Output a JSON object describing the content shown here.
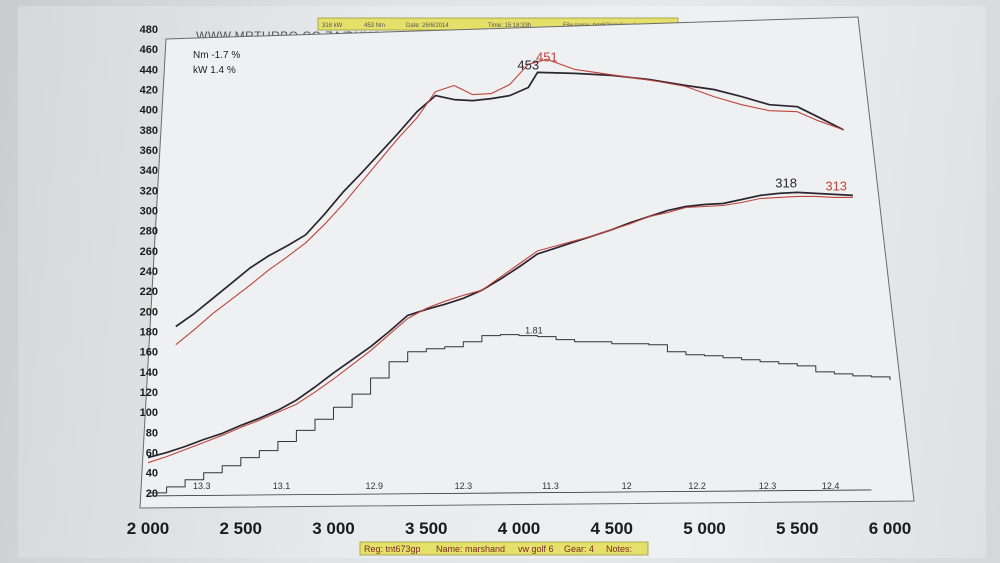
{
  "header": {
    "url": "WWW.MRTURBO.CO.ZA/DYNO",
    "fields": [
      "318 kW",
      "453 Nm",
      "Date: 26/6/2014",
      "Time: 15:18:33h",
      "File name: bmt6?#gp/lisa.dyn"
    ]
  },
  "footer": {
    "fields": [
      "Reg: tnt673gp",
      "Name: marshand",
      "vw golf 6",
      "Gear: 4",
      "Notes:"
    ]
  },
  "stats": {
    "nm_diff": "Nm -1.7 %",
    "kw_diff": "kW 1.4 %"
  },
  "colors": {
    "run_a": "#2b2530",
    "run_b": "#c0443c",
    "boost": "#333333"
  },
  "chart_data": {
    "type": "line",
    "xlim": [
      2000,
      6000
    ],
    "ylim": [
      10,
      485
    ],
    "x_ticks": [
      2000,
      2500,
      3000,
      3500,
      4000,
      4500,
      5000,
      5500,
      6000
    ],
    "x_tick_labels": [
      "2 000",
      "2 500",
      "3 000",
      "3 500",
      "4 000",
      "4 500",
      "5 000",
      "5 500",
      "6 000"
    ],
    "y_ticks": [
      20,
      40,
      60,
      80,
      100,
      120,
      140,
      160,
      180,
      200,
      220,
      240,
      260,
      280,
      300,
      320,
      340,
      360,
      380,
      400,
      420,
      440,
      460,
      480
    ],
    "grid": false,
    "series": [
      {
        "x": [
          2150,
          2250,
          2350,
          2450,
          2550,
          2650,
          2750,
          2850,
          2950,
          3050,
          3150,
          3250,
          3350,
          3450,
          3550,
          3650,
          3750,
          3850,
          3950,
          4050,
          4100,
          4300,
          4500,
          4700,
          4900,
          5050,
          5200,
          5350,
          5500,
          5600,
          5750
        ],
        "y": [
          185,
          198,
          213,
          228,
          243,
          255,
          265,
          276,
          296,
          318,
          337,
          357,
          377,
          398,
          414,
          410,
          409,
          411,
          414,
          422,
          437,
          436,
          434,
          430,
          424,
          420,
          413,
          405,
          403,
          394,
          380
        ]
      },
      {
        "x": [
          2150,
          2250,
          2350,
          2450,
          2550,
          2650,
          2750,
          2850,
          2950,
          3050,
          3150,
          3250,
          3350,
          3450,
          3550,
          3650,
          3750,
          3850,
          3950,
          4050,
          4150,
          4300,
          4450,
          4600,
          4750,
          4900,
          5050,
          5200,
          5350,
          5500,
          5600,
          5750
        ],
        "y": [
          167,
          182,
          198,
          212,
          226,
          241,
          254,
          268,
          286,
          306,
          328,
          350,
          372,
          392,
          418,
          424,
          415,
          416,
          425,
          445,
          450,
          440,
          436,
          432,
          428,
          423,
          413,
          405,
          399,
          398,
          390,
          380
        ]
      },
      {
        "x": [
          2000,
          2100,
          2200,
          2300,
          2400,
          2500,
          2600,
          2700,
          2800,
          2900,
          3000,
          3100,
          3200,
          3300,
          3400,
          3500,
          3600,
          3700,
          3800,
          3900,
          4000,
          4100,
          4200,
          4300,
          4400,
          4500,
          4600,
          4700,
          4800,
          4900,
          5000,
          5100,
          5200,
          5300,
          5400,
          5500,
          5600,
          5700,
          5800
        ],
        "y": [
          55,
          60,
          66,
          73,
          79,
          87,
          94,
          102,
          112,
          125,
          139,
          152,
          165,
          180,
          196,
          202,
          207,
          213,
          221,
          232,
          244,
          257,
          263,
          269,
          275,
          281,
          288,
          294,
          300,
          304,
          306,
          307,
          311,
          315,
          317,
          318,
          317,
          316,
          315
        ]
      },
      {
        "x": [
          2000,
          2100,
          2200,
          2300,
          2400,
          2500,
          2600,
          2700,
          2800,
          2900,
          3000,
          3100,
          3200,
          3300,
          3400,
          3500,
          3600,
          3700,
          3800,
          3900,
          4000,
          4100,
          4200,
          4300,
          4400,
          4500,
          4600,
          4700,
          4800,
          4900,
          5000,
          5100,
          5200,
          5300,
          5400,
          5500,
          5600,
          5700,
          5800
        ],
        "y": [
          50,
          56,
          63,
          70,
          77,
          85,
          92,
          100,
          108,
          120,
          133,
          147,
          161,
          177,
          193,
          203,
          210,
          216,
          221,
          234,
          247,
          260,
          265,
          270,
          275,
          281,
          287,
          294,
          298,
          303,
          304,
          305,
          308,
          312,
          313,
          314,
          314,
          313,
          313
        ]
      },
      {
        "x": [
          2000,
          2100,
          2200,
          2300,
          2400,
          2500,
          2600,
          2700,
          2800,
          2900,
          3000,
          3100,
          3200,
          3300,
          3400,
          3500,
          3600,
          3700,
          3800,
          3900,
          4000,
          4100,
          4200,
          4300,
          4400,
          4500,
          4600,
          4700,
          4800,
          4900,
          5000,
          5100,
          5200,
          5300,
          5400,
          5500,
          5600,
          5700,
          5800,
          5900,
          6000
        ],
        "y": [
          20,
          26,
          33,
          40,
          47,
          55,
          62,
          71,
          82,
          93,
          105,
          118,
          134,
          150,
          160,
          163,
          165,
          170,
          176,
          177,
          176,
          175,
          172,
          170,
          170,
          168,
          168,
          167,
          160,
          157,
          156,
          154,
          152,
          150,
          148,
          146,
          140,
          138,
          136,
          135,
          132
        ]
      }
    ],
    "peak_labels": [
      {
        "text": "453",
        "x": 4050,
        "y": 440,
        "color_key": "run_a"
      },
      {
        "text": "451",
        "x": 4150,
        "y": 448,
        "color_key": "run_b"
      },
      {
        "text": "318",
        "x": 5440,
        "y": 323,
        "color_key": "run_a"
      },
      {
        "text": "313",
        "x": 5710,
        "y": 320,
        "color_key": "run_b"
      },
      {
        "text": "1.81",
        "x": 4080,
        "y": 178,
        "color_key": "boost"
      }
    ],
    "afr_labels": [
      {
        "x": 2290,
        "text": "13.3"
      },
      {
        "x": 2720,
        "text": "13.1"
      },
      {
        "x": 3220,
        "text": "12.9"
      },
      {
        "x": 3700,
        "text": "12.3"
      },
      {
        "x": 4170,
        "text": "11.3"
      },
      {
        "x": 4580,
        "text": "12"
      },
      {
        "x": 4960,
        "text": "12.2"
      },
      {
        "x": 5340,
        "text": "12.3"
      },
      {
        "x": 5680,
        "text": "12.4"
      }
    ]
  }
}
